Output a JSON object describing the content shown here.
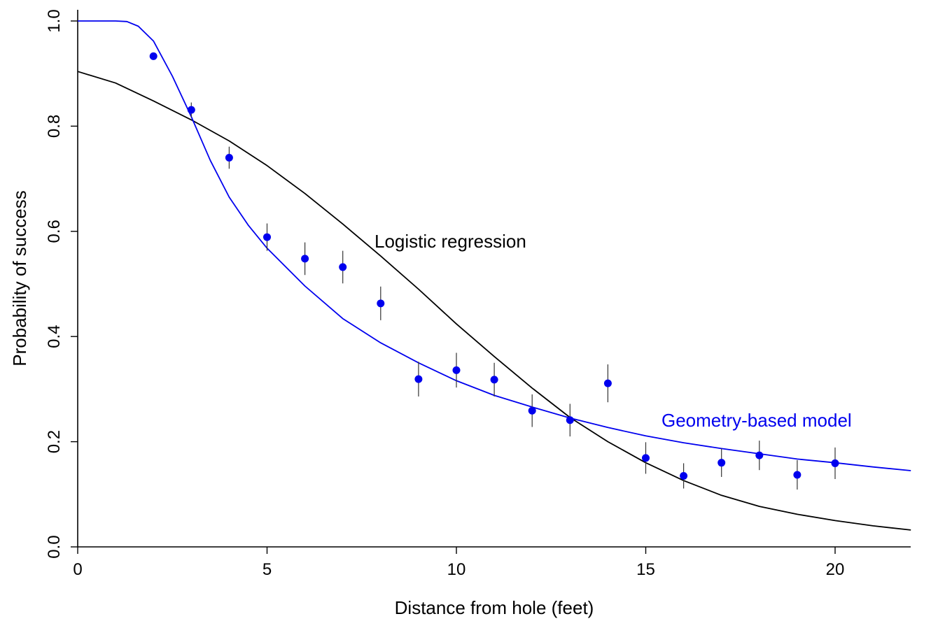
{
  "chart_data": {
    "type": "scatter",
    "xlabel": "Distance from hole (feet)",
    "ylabel": "Probability of success",
    "xlim": [
      0,
      22
    ],
    "ylim": [
      0,
      1
    ],
    "x_ticks": [
      0,
      5,
      10,
      15,
      20
    ],
    "y_ticks": [
      0.0,
      0.2,
      0.4,
      0.6,
      0.8,
      1.0
    ],
    "x_tick_labels": [
      "0",
      "5",
      "10",
      "15",
      "20"
    ],
    "y_tick_labels": [
      "0.0",
      "0.2",
      "0.4",
      "0.6",
      "0.8",
      "1.0"
    ],
    "grid": false,
    "points": {
      "color": "#0000ee",
      "x": [
        2,
        3,
        4,
        5,
        6,
        7,
        8,
        9,
        10,
        11,
        12,
        13,
        14,
        15,
        16,
        17,
        18,
        19,
        20
      ],
      "y": [
        0.933,
        0.831,
        0.74,
        0.589,
        0.548,
        0.532,
        0.463,
        0.319,
        0.336,
        0.318,
        0.259,
        0.241,
        0.311,
        0.169,
        0.135,
        0.16,
        0.174,
        0.137,
        0.159
      ],
      "err": [
        0.004,
        0.014,
        0.021,
        0.026,
        0.031,
        0.031,
        0.032,
        0.033,
        0.033,
        0.032,
        0.031,
        0.031,
        0.036,
        0.03,
        0.024,
        0.027,
        0.028,
        0.028,
        0.03
      ]
    },
    "curves": [
      {
        "label": "Logistic regression",
        "color": "#000000",
        "x": [
          0,
          1,
          2,
          3,
          4,
          5,
          6,
          7,
          8,
          9,
          10,
          11,
          12,
          13,
          14,
          15,
          16,
          17,
          18,
          19,
          20,
          21,
          22
        ],
        "y": [
          0.904,
          0.882,
          0.848,
          0.812,
          0.772,
          0.725,
          0.672,
          0.614,
          0.553,
          0.49,
          0.424,
          0.362,
          0.302,
          0.246,
          0.2,
          0.16,
          0.126,
          0.098,
          0.077,
          0.062,
          0.05,
          0.04,
          0.032
        ]
      },
      {
        "label": "Geometry-based model",
        "color": "#0000ee",
        "x": [
          0,
          1,
          1.3,
          1.6,
          2,
          2.5,
          3,
          3.5,
          4,
          4.5,
          5,
          6,
          7,
          8,
          9,
          10,
          11,
          12,
          13,
          14,
          15,
          16,
          17,
          18,
          19,
          20,
          21,
          22
        ],
        "y": [
          1.0,
          1.0,
          0.999,
          0.99,
          0.962,
          0.895,
          0.818,
          0.735,
          0.665,
          0.612,
          0.568,
          0.496,
          0.434,
          0.388,
          0.35,
          0.316,
          0.288,
          0.266,
          0.245,
          0.227,
          0.211,
          0.198,
          0.187,
          0.177,
          0.167,
          0.16,
          0.152,
          0.145
        ]
      }
    ]
  }
}
